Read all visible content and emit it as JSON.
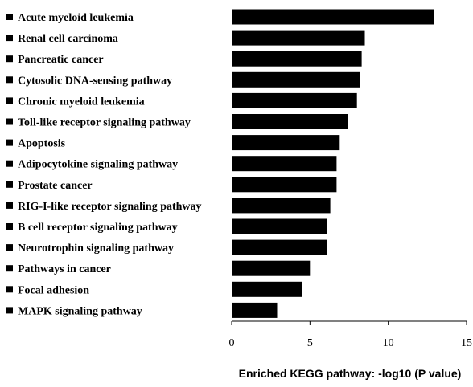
{
  "chart_data": {
    "type": "bar",
    "orientation": "horizontal",
    "categories": [
      "Acute myeloid leukemia",
      "Renal cell carcinoma",
      "Pancreatic cancer",
      "Cytosolic DNA-sensing pathway",
      "Chronic myeloid leukemia",
      "Toll-like receptor signaling pathway",
      "Apoptosis",
      "Adipocytokine signaling pathway",
      "Prostate cancer",
      "RIG-I-like receptor signaling pathway",
      "B cell receptor signaling pathway",
      "Neurotrophin signaling pathway",
      "Pathways in cancer",
      "Focal adhesion",
      "MAPK signaling pathway"
    ],
    "values": [
      12.9,
      8.5,
      8.3,
      8.2,
      8.0,
      7.4,
      6.9,
      6.7,
      6.7,
      6.3,
      6.1,
      6.1,
      5.0,
      4.5,
      2.9
    ],
    "xlabel": "Enriched KEGG pathway: -log10 (P value)",
    "ylabel": "",
    "title": "",
    "xlim": [
      0,
      15
    ],
    "xticks": [
      "0",
      "5",
      "10",
      "15"
    ],
    "grid": false,
    "legend": "none",
    "colors": {
      "bar": "#000000",
      "axis": "#000000",
      "text": "#000000",
      "background": "#ffffff"
    }
  }
}
